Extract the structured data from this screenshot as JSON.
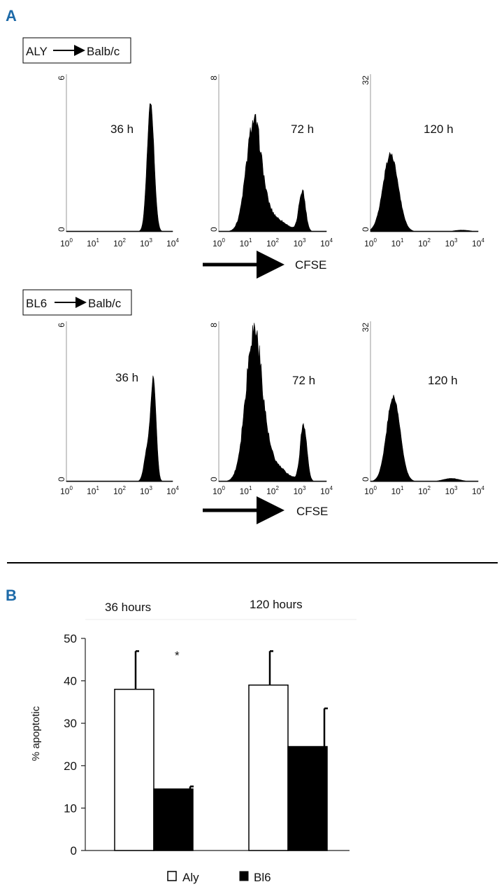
{
  "panels": {
    "a": "A",
    "b": "B"
  },
  "rows": [
    {
      "label_donor": "ALY",
      "label_recipient": "Balb/c"
    },
    {
      "label_donor": "BL6",
      "label_recipient": "Balb/c"
    }
  ],
  "x_axis_label": "CFSE",
  "x_tick_base": "10",
  "x_tick_exponents": [
    "0",
    "1",
    "2",
    "3",
    "4"
  ],
  "chart_data": [
    {
      "type": "area",
      "name": "ALY 36 h",
      "time_label": "36 h",
      "ymax_label": "6",
      "ymin_label": "0",
      "x_range_log10": [
        0,
        4
      ],
      "peaks": [
        {
          "center_log10": 3.17,
          "width": 0.13,
          "height": 0.82
        }
      ],
      "noise": 0.0
    },
    {
      "type": "area",
      "name": "ALY 72 h",
      "time_label": "72 h",
      "ymax_label": "8",
      "ymin_label": "0",
      "x_range_log10": [
        0,
        4
      ],
      "peaks": [
        {
          "center_log10": 1.3,
          "width": 0.28,
          "height": 0.66
        },
        {
          "center_log10": 1.9,
          "width": 0.5,
          "height": 0.1
        },
        {
          "center_log10": 3.1,
          "width": 0.12,
          "height": 0.26
        }
      ],
      "noise": 0.05
    },
    {
      "type": "area",
      "name": "ALY 120 h",
      "time_label": "120 h",
      "ymax_label": "32",
      "ymin_label": "0",
      "x_range_log10": [
        0,
        4
      ],
      "peaks": [
        {
          "center_log10": 0.75,
          "width": 0.28,
          "height": 0.49
        },
        {
          "center_log10": 3.4,
          "width": 0.3,
          "height": 0.01
        }
      ],
      "noise": 0.02
    },
    {
      "type": "area",
      "name": "BL6 36 h",
      "time_label": "36 h",
      "ymax_label": "6",
      "ymin_label": "0",
      "x_range_log10": [
        0,
        4
      ],
      "peaks": [
        {
          "center_log10": 3.28,
          "width": 0.1,
          "height": 0.62
        },
        {
          "center_log10": 3.05,
          "width": 0.12,
          "height": 0.2
        }
      ],
      "noise": 0.0
    },
    {
      "type": "area",
      "name": "BL6 72 h",
      "time_label": "72 h",
      "ymax_label": "8",
      "ymin_label": "0",
      "x_range_log10": [
        0,
        4
      ],
      "peaks": [
        {
          "center_log10": 1.3,
          "width": 0.3,
          "height": 0.9
        },
        {
          "center_log10": 1.9,
          "width": 0.5,
          "height": 0.12
        },
        {
          "center_log10": 3.15,
          "width": 0.12,
          "height": 0.36
        }
      ],
      "noise": 0.06
    },
    {
      "type": "area",
      "name": "BL6 120 h",
      "time_label": "120 h",
      "ymax_label": "32",
      "ymin_label": "0",
      "x_range_log10": [
        0,
        4
      ],
      "peaks": [
        {
          "center_log10": 0.85,
          "width": 0.25,
          "height": 0.53
        },
        {
          "center_log10": 3.0,
          "width": 0.3,
          "height": 0.02
        }
      ],
      "noise": 0.02
    },
    {
      "type": "bar",
      "name": "Panel B",
      "group_headers": [
        "36 hours",
        "120 hours"
      ],
      "ylabel": "% apoptotic",
      "ylim": [
        0,
        50
      ],
      "yticks": [
        0,
        10,
        20,
        30,
        40,
        50
      ],
      "series": [
        {
          "name": "Aly",
          "values": [
            38,
            39
          ],
          "errors": [
            9,
            8
          ]
        },
        {
          "name": "Bl6",
          "values": [
            14.5,
            24.5
          ],
          "errors": [
            0.6,
            9
          ]
        }
      ],
      "annotation": "*"
    }
  ]
}
